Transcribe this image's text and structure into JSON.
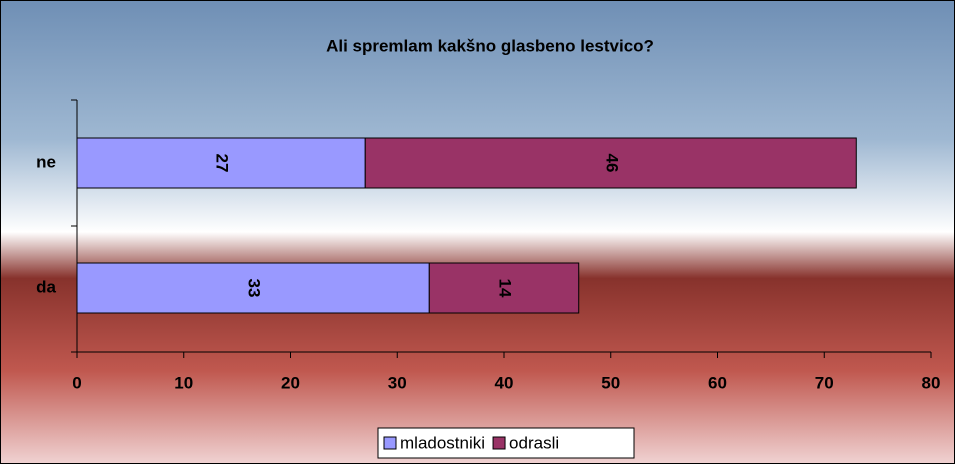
{
  "chart_data": {
    "type": "stacked_bar_horizontal",
    "title": "Ali spremlam kakšno glasbeno lestvico?",
    "categories": [
      "ne",
      "da"
    ],
    "series": [
      {
        "name": "mladostniki",
        "color": "#9999ff",
        "label_color": "#000000",
        "values": [
          27,
          33
        ]
      },
      {
        "name": "odrasli",
        "color": "#993366",
        "label_color": "#ffffff",
        "values": [
          46,
          14
        ]
      }
    ],
    "xlim": [
      0,
      80
    ],
    "xticks": [
      0,
      10,
      20,
      30,
      40,
      50,
      60,
      70,
      80
    ],
    "legend": "bottom"
  }
}
